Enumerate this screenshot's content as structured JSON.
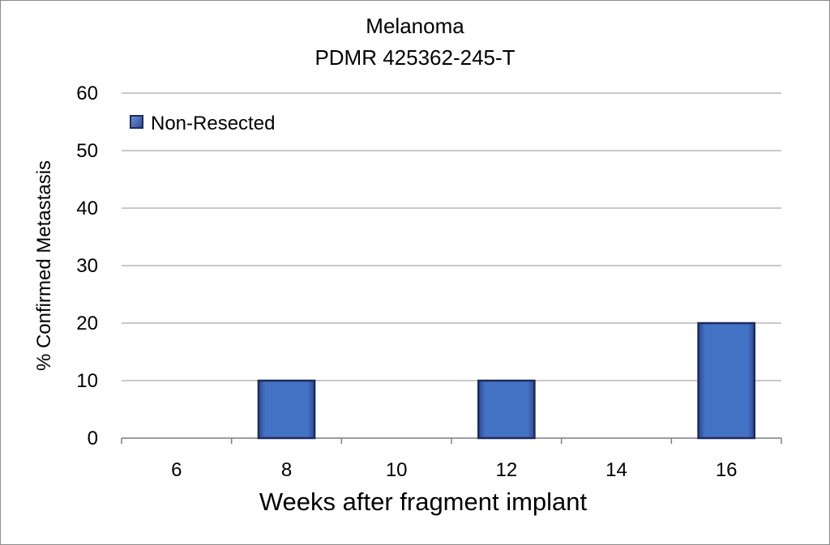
{
  "chart_data": {
    "type": "bar",
    "title": "Melanoma",
    "subtitle": "PDMR 425362-245-T",
    "xlabel": "Weeks after fragment implant",
    "ylabel": "% Confirmed Metastasis",
    "categories": [
      "6",
      "8",
      "10",
      "12",
      "14",
      "16"
    ],
    "series": [
      {
        "name": "Non-Resected",
        "values": [
          0,
          10,
          0,
          10,
          0,
          20
        ]
      }
    ],
    "yticks": [
      "0",
      "10",
      "20",
      "30",
      "40",
      "50",
      "60"
    ],
    "ylim": [
      0,
      60
    ],
    "grid": true,
    "legend_position": "top-left",
    "colors": {
      "bar_fill": "#4472c4",
      "bar_edge": "#1f2a5c",
      "grid": "#a6a6a6",
      "axis": "#7f7f7f"
    }
  }
}
